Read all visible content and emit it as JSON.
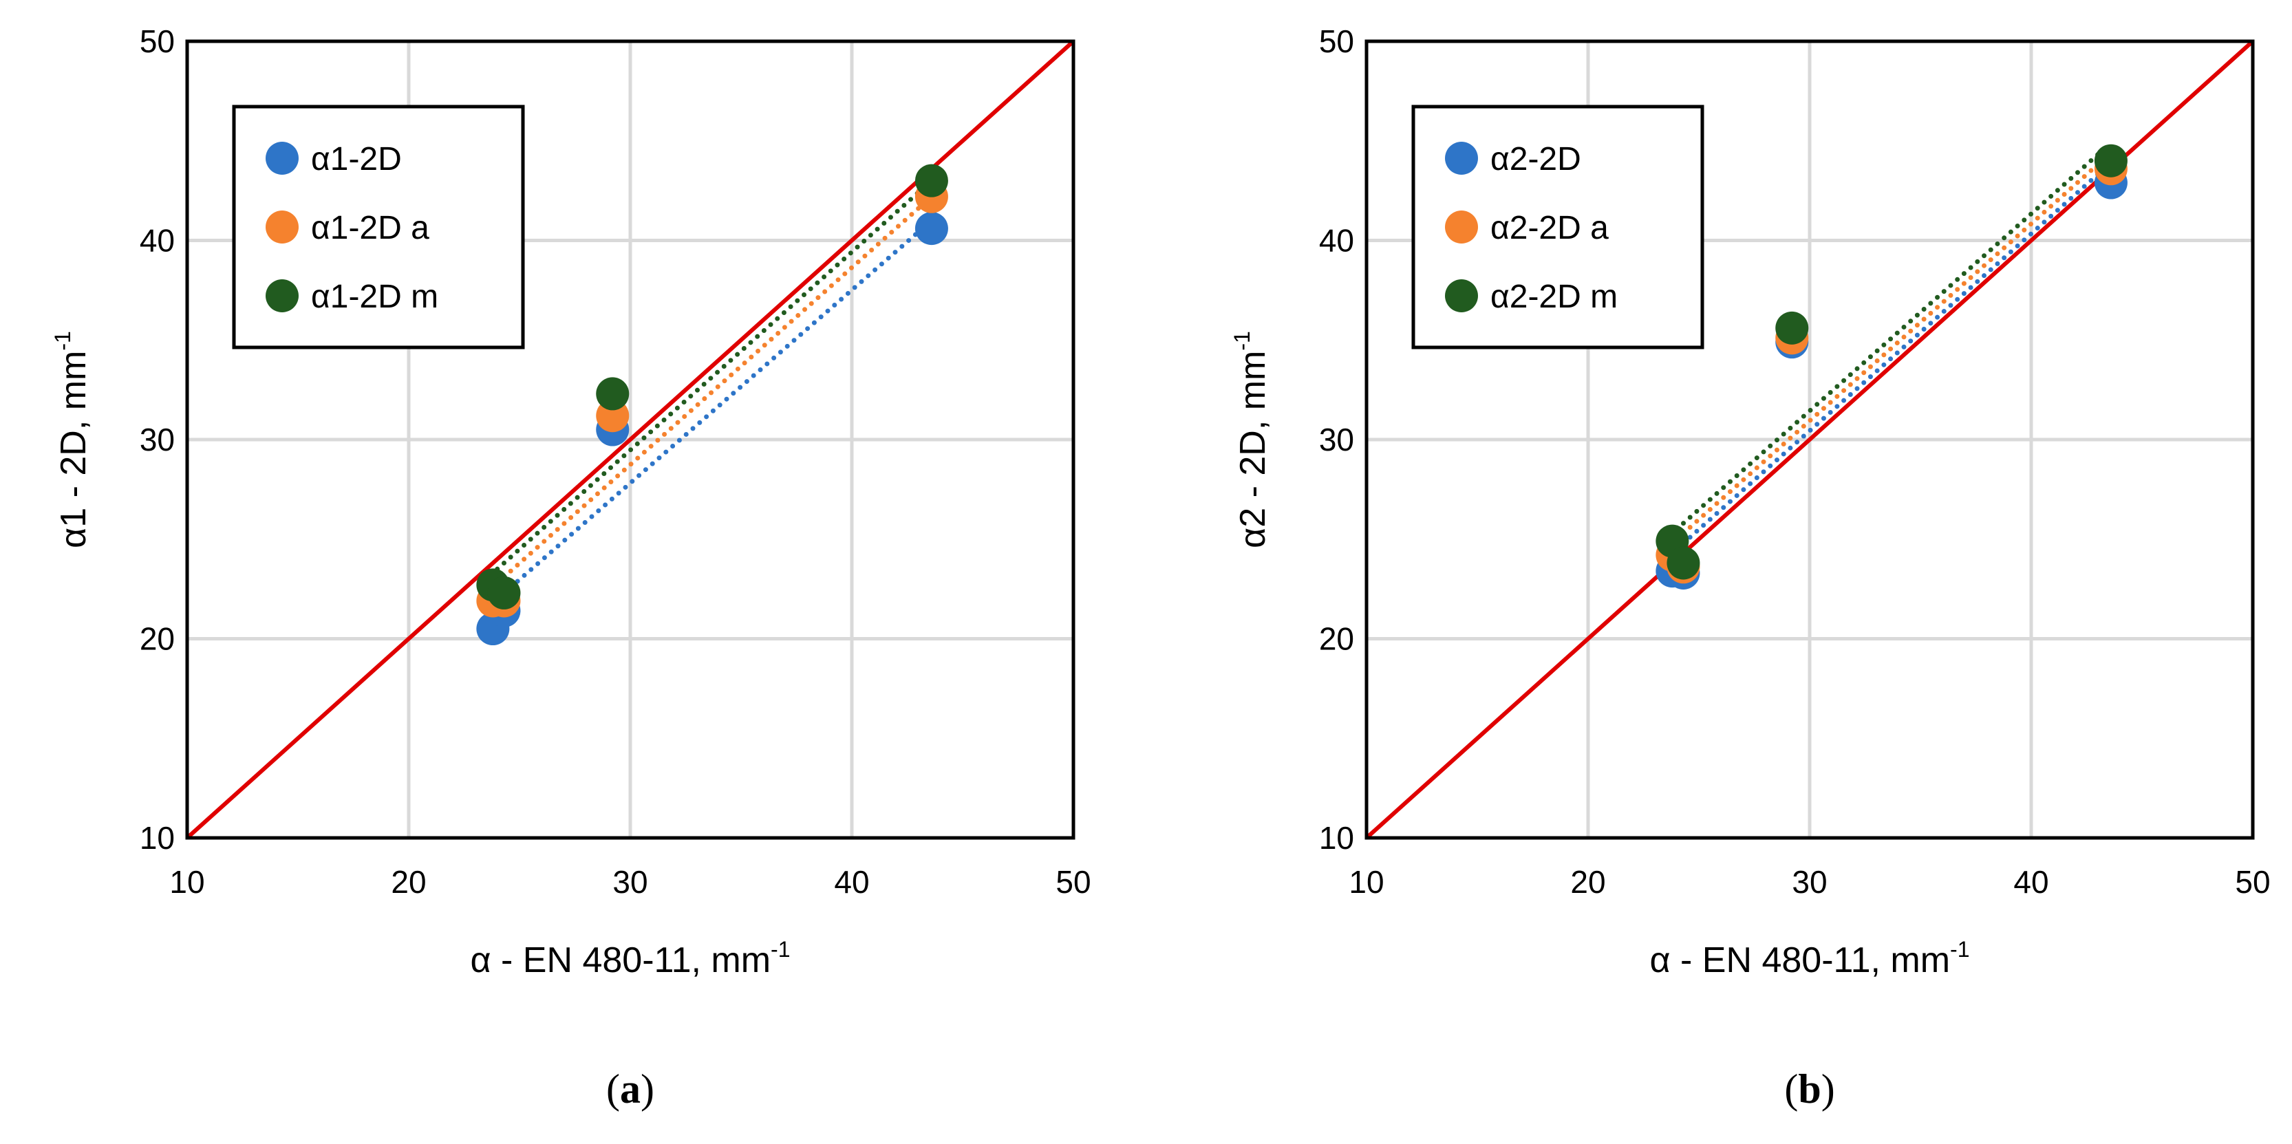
{
  "colors": {
    "blue": "#2E75C8",
    "orange": "#F5822E",
    "green": "#215B1F",
    "red_line": "#E00000",
    "grid": "#D9D9D9",
    "frame": "#000000"
  },
  "chart_data": [
    {
      "type": "scatter",
      "panel_label": "a",
      "xlabel": "α - EN 480-11, mm",
      "xlabel_sup": "-1",
      "ylabel": "α1  -  2D, mm",
      "ylabel_sup": "-1",
      "xlim": [
        10,
        50
      ],
      "ylim": [
        10,
        50
      ],
      "xticks": [
        "10",
        "20",
        "30",
        "40",
        "50"
      ],
      "yticks": [
        "10",
        "20",
        "30",
        "40",
        "50"
      ],
      "identity_line": [
        [
          10,
          10
        ],
        [
          50,
          50
        ]
      ],
      "legend": {
        "position": "top-left"
      },
      "series": [
        {
          "name": "α1-2D",
          "color_key": "blue",
          "x": [
            23.8,
            24.3,
            29.2,
            43.6
          ],
          "y": [
            20.5,
            21.4,
            30.5,
            40.6
          ],
          "trend": [
            [
              24,
              22.0
            ],
            [
              43.6,
              41.0
            ]
          ]
        },
        {
          "name": "α1-2D a",
          "color_key": "orange",
          "x": [
            23.8,
            24.3,
            29.2,
            43.6
          ],
          "y": [
            21.9,
            21.9,
            31.2,
            42.2
          ],
          "trend": [
            [
              24,
              22.8
            ],
            [
              43.6,
              42.2
            ]
          ]
        },
        {
          "name": "α1-2D m",
          "color_key": "green",
          "x": [
            23.8,
            24.3,
            29.2,
            43.6
          ],
          "y": [
            22.7,
            22.3,
            32.3,
            43.0
          ],
          "trend": [
            [
              24,
              23.5
            ],
            [
              43.6,
              43.0
            ]
          ]
        }
      ]
    },
    {
      "type": "scatter",
      "panel_label": "b",
      "xlabel": "α - EN 480-11, mm",
      "xlabel_sup": "-1",
      "ylabel": "α2  -  2D, mm",
      "ylabel_sup": "-1",
      "xlim": [
        10,
        50
      ],
      "ylim": [
        10,
        50
      ],
      "xticks": [
        "10",
        "20",
        "30",
        "40",
        "50"
      ],
      "yticks": [
        "10",
        "20",
        "30",
        "40",
        "50"
      ],
      "identity_line": [
        [
          10,
          10
        ],
        [
          50,
          50
        ]
      ],
      "legend": {
        "position": "top-left"
      },
      "series": [
        {
          "name": "α2-2D",
          "color_key": "blue",
          "x": [
            23.8,
            24.3,
            29.2,
            43.6
          ],
          "y": [
            23.4,
            23.3,
            34.9,
            42.9
          ],
          "trend": [
            [
              24,
              24.5
            ],
            [
              43.6,
              43.9
            ]
          ]
        },
        {
          "name": "α2-2D a",
          "color_key": "orange",
          "x": [
            23.8,
            24.3,
            29.2,
            43.6
          ],
          "y": [
            24.2,
            23.6,
            35.1,
            43.6
          ],
          "trend": [
            [
              24,
              25.0
            ],
            [
              43.6,
              44.4
            ]
          ]
        },
        {
          "name": "α2-2D m",
          "color_key": "green",
          "x": [
            23.8,
            24.3,
            29.2,
            43.6
          ],
          "y": [
            24.9,
            23.8,
            35.6,
            44.0
          ],
          "trend": [
            [
              24,
              25.5
            ],
            [
              43.6,
              44.9
            ]
          ]
        }
      ]
    }
  ]
}
